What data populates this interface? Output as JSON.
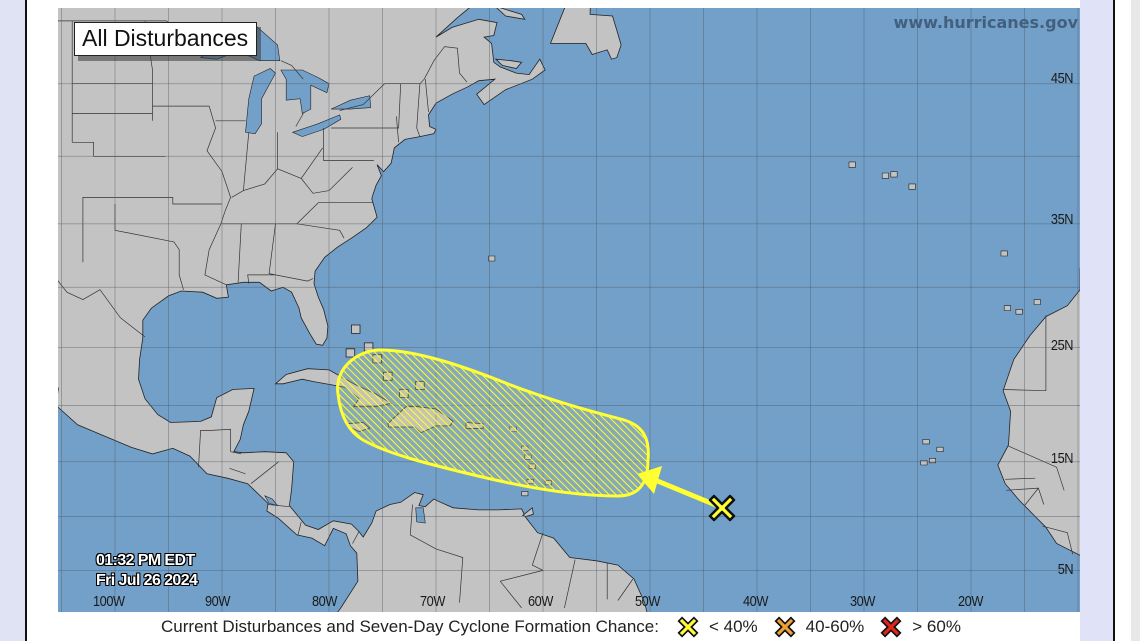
{
  "map": {
    "title": "All Disturbances",
    "website": "www.hurricanes.gov",
    "lat_labels": [
      "45N",
      "35N",
      "25N",
      "15N",
      "5N"
    ],
    "lon_labels": [
      "100W",
      "90W",
      "80W",
      "70W",
      "60W",
      "50W",
      "40W",
      "30W",
      "20W"
    ],
    "timestamp": {
      "time": "01:32 PM EDT",
      "date": "Fri Jul 26 2024"
    },
    "disturbances": [
      {
        "formation_chance": "< 40%",
        "color": "#ffff33",
        "marker": "x-icon",
        "area": "hatched-yellow"
      }
    ]
  },
  "legend": {
    "caption": "Current Disturbances and Seven-Day Cyclone Formation Chance:",
    "items": [
      {
        "label": "< 40%",
        "color": "#ffff33"
      },
      {
        "label": "40-60%",
        "color": "#f0a030"
      },
      {
        "label": "> 60%",
        "color": "#e0261b"
      }
    ]
  },
  "colors": {
    "water": "#72a0c9",
    "land": "#c3c3c3",
    "outlook_low": "#ffff33"
  }
}
